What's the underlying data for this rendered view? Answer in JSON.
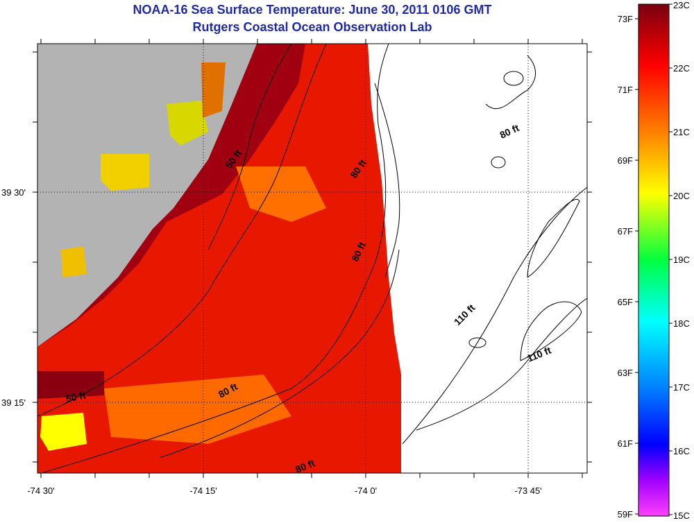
{
  "title": {
    "line1": "NOAA-16 Sea Surface Temperature:  June 30, 2011 0106 GMT",
    "line2": "Rutgers Coastal Ocean Observation Lab"
  },
  "axes": {
    "x_ticks": [
      "-74 30'",
      "-74 15'",
      "-74 0'",
      "-73 45'"
    ],
    "y_ticks": [
      "39 30'",
      "39 15'"
    ]
  },
  "contour_labels": [
    "50 ft",
    "80 ft",
    "80 ft",
    "80 ft",
    "110 ft",
    "110 ft",
    "50 ft",
    "80 ft",
    "80 ft"
  ],
  "colorbar": {
    "fahrenheit": [
      "73F",
      "71F",
      "69F",
      "67F",
      "65F",
      "63F",
      "61F",
      "59F"
    ],
    "celsius": [
      "23C",
      "22C",
      "21C",
      "20C",
      "19C",
      "18C",
      "17C",
      "16C",
      "15C"
    ],
    "colors": [
      "#8b0000",
      "#e00000",
      "#ff3300",
      "#ff8000",
      "#ffb000",
      "#ffff00",
      "#80ff30",
      "#00ffaa",
      "#00e0ff",
      "#0080ff",
      "#0000ff",
      "#a000ff",
      "#ff40ff"
    ]
  },
  "colors": {
    "land": "#b3b3b3",
    "no_data": "#ffffff",
    "title": "#1f2aa6"
  }
}
